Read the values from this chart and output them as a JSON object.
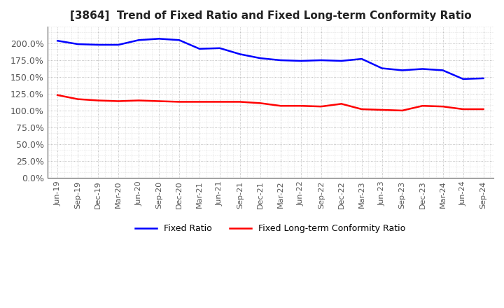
{
  "title": "[3864]  Trend of Fixed Ratio and Fixed Long-term Conformity Ratio",
  "x_labels": [
    "Jun-19",
    "Sep-19",
    "Dec-19",
    "Mar-20",
    "Jun-20",
    "Sep-20",
    "Dec-20",
    "Mar-21",
    "Jun-21",
    "Sep-21",
    "Dec-21",
    "Mar-22",
    "Jun-22",
    "Sep-22",
    "Dec-22",
    "Mar-23",
    "Jun-23",
    "Sep-23",
    "Dec-23",
    "Mar-24",
    "Jun-24",
    "Sep-24"
  ],
  "fixed_ratio": [
    2.04,
    1.99,
    1.98,
    1.98,
    2.05,
    2.07,
    2.05,
    1.92,
    1.93,
    1.84,
    1.78,
    1.75,
    1.74,
    1.75,
    1.74,
    1.77,
    1.63,
    1.6,
    1.62,
    1.6,
    1.47,
    1.48
  ],
  "fixed_lt_ratio": [
    1.23,
    1.17,
    1.15,
    1.14,
    1.15,
    1.14,
    1.13,
    1.13,
    1.13,
    1.13,
    1.11,
    1.07,
    1.07,
    1.06,
    1.1,
    1.02,
    1.01,
    1.0,
    1.07,
    1.06,
    1.02,
    1.02
  ],
  "line_color_blue": "#0000FF",
  "line_color_red": "#FF0000",
  "background_color": "#FFFFFF",
  "grid_color": "#999999",
  "legend_fixed": "Fixed Ratio",
  "legend_lt": "Fixed Long-term Conformity Ratio",
  "title_fontsize": 11,
  "tick_fontsize": 9,
  "xlabel_fontsize": 8
}
